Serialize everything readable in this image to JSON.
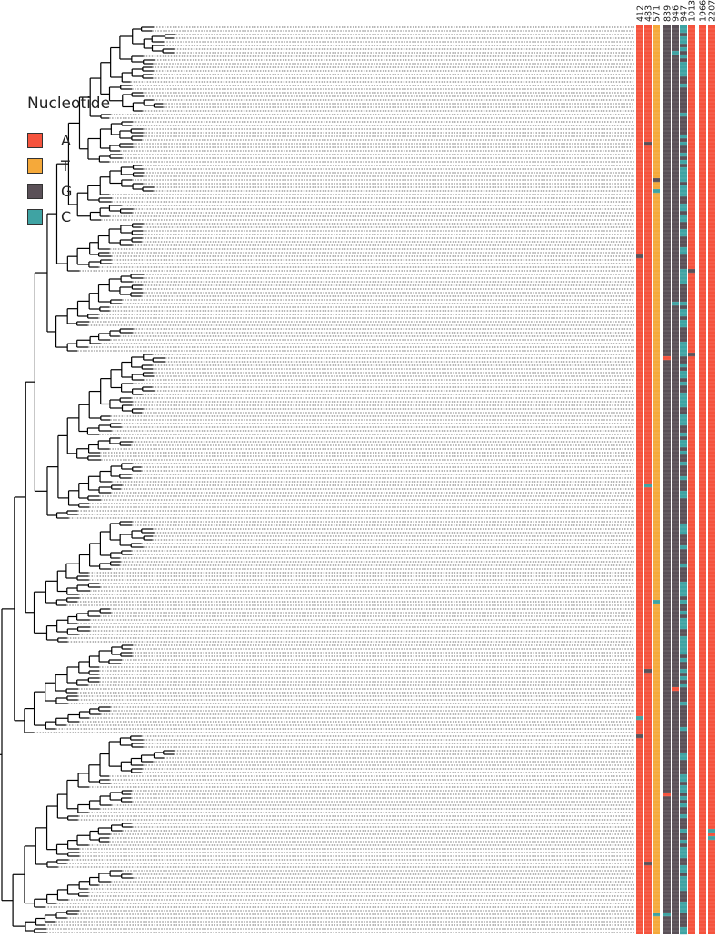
{
  "legend": {
    "title": "Nucleotide",
    "items": [
      {
        "label": "A",
        "color": "#f5533d"
      },
      {
        "label": "T",
        "color": "#f5a93a"
      },
      {
        "label": "G",
        "color": "#5a5057"
      },
      {
        "label": "C",
        "color": "#3fa3a3"
      }
    ]
  },
  "columns": [
    {
      "label": "412",
      "base": "A"
    },
    {
      "label": "483",
      "base": "A"
    },
    {
      "label": "571",
      "base": "T"
    },
    {
      "label": "839",
      "base": "G"
    },
    {
      "label": "946",
      "base": "G"
    },
    {
      "label": "947",
      "base": "G"
    },
    {
      "label": "1013",
      "base": "A"
    },
    {
      "label": "1966",
      "base": "A"
    },
    {
      "label": "2207",
      "base": "A"
    }
  ],
  "colors": {
    "A": "#f5533d",
    "T": "#f5a93a",
    "G": "#5a5057",
    "C": "#3fa3a3",
    "branch": "#000000",
    "guide": "#444444"
  }
}
